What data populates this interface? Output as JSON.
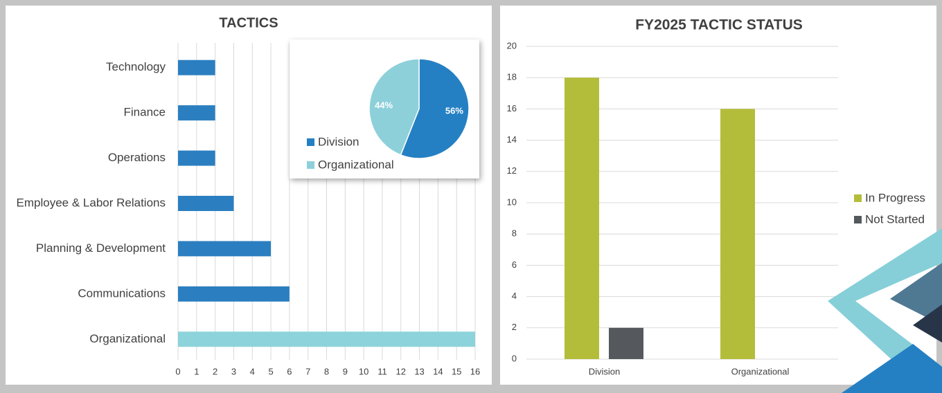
{
  "chart_data": [
    {
      "type": "hbar",
      "title": "TACTICS",
      "categories": [
        "Technology",
        "Finance",
        "Operations",
        "Employee & Labor Relations",
        "Planning & Development",
        "Communications",
        "Organizational"
      ],
      "values": [
        2,
        2,
        2,
        3,
        5,
        6,
        16
      ],
      "colors": [
        "#2b7fc0",
        "#2b7fc0",
        "#2b7fc0",
        "#2b7fc0",
        "#2b7fc0",
        "#2b7fc0",
        "#8dd3db"
      ],
      "xlim": [
        0,
        16
      ],
      "xticks": [
        0,
        1,
        2,
        3,
        4,
        5,
        6,
        7,
        8,
        9,
        10,
        11,
        12,
        13,
        14,
        15,
        16
      ],
      "grid": true
    },
    {
      "type": "pie",
      "categories": [
        "Division",
        "Organizational"
      ],
      "values": [
        56,
        44
      ],
      "value_labels": [
        "56%",
        "44%"
      ],
      "colors": [
        "#2580c3",
        "#8dd0da"
      ]
    },
    {
      "type": "bar",
      "title": "FY2025 TACTIC STATUS",
      "categories": [
        "Division",
        "Organizational"
      ],
      "series": [
        {
          "name": "In Progress",
          "color": "#b4bd3a",
          "values": [
            18,
            16
          ]
        },
        {
          "name": "Not Started",
          "color": "#55585c",
          "values": [
            2,
            0
          ]
        }
      ],
      "ylim": [
        0,
        20
      ],
      "yticks": [
        0,
        2,
        4,
        6,
        8,
        10,
        12,
        14,
        16,
        18,
        20
      ],
      "grid": true,
      "legend": "right"
    }
  ]
}
